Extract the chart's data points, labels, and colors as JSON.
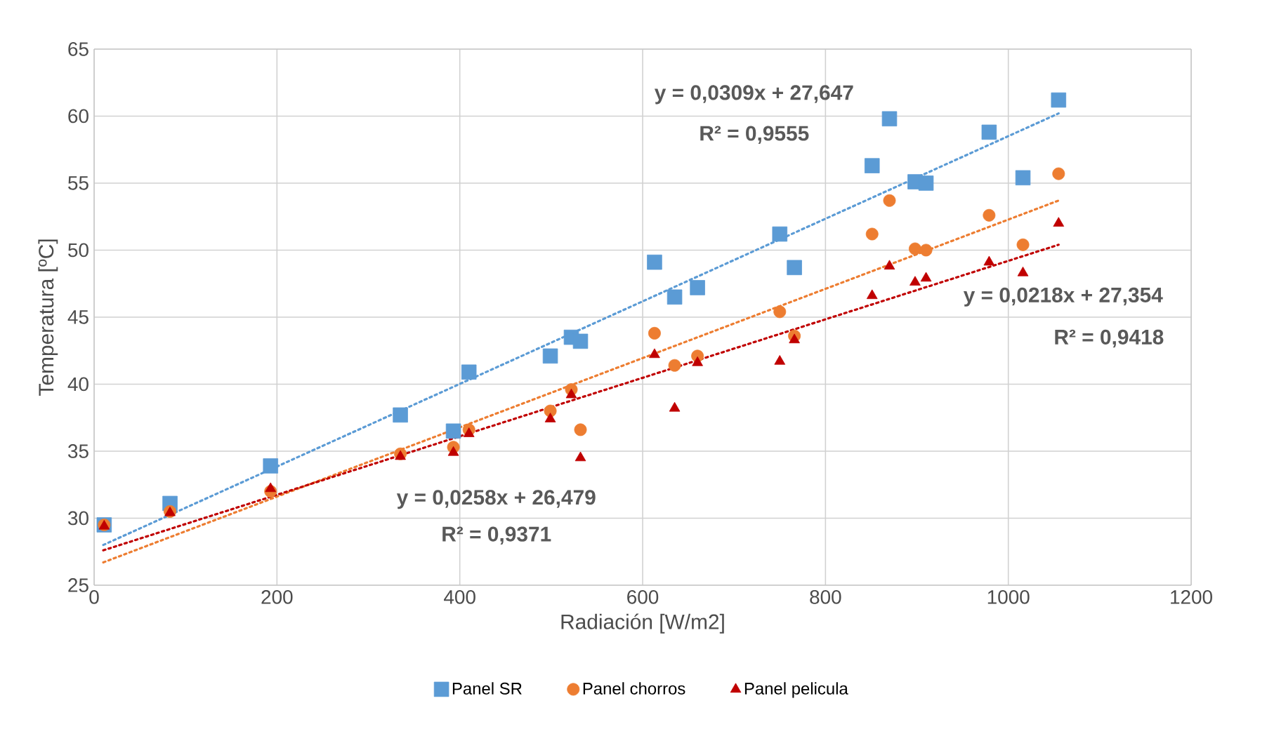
{
  "chart_data": {
    "type": "scatter",
    "xlabel": "Radiación [W/m2]",
    "ylabel": "Temperatura [ºC]",
    "xlim": [
      0,
      1200
    ],
    "ylim": [
      25,
      65
    ],
    "xticks": [
      0,
      200,
      400,
      600,
      800,
      1000,
      1200
    ],
    "yticks": [
      25,
      30,
      35,
      40,
      45,
      50,
      55,
      60,
      65
    ],
    "grid": true,
    "legend": "bottom",
    "series": [
      {
        "name": "Panel SR",
        "color": "#5b9bd5",
        "marker": "square",
        "x": [
          11,
          83,
          193,
          335,
          393,
          410,
          499,
          522,
          532,
          613,
          635,
          660,
          750,
          766,
          851,
          870,
          898,
          910,
          979,
          1016,
          1055
        ],
        "values": [
          29.5,
          31.1,
          33.9,
          37.7,
          36.5,
          40.9,
          42.1,
          43.5,
          43.2,
          49.1,
          46.5,
          47.2,
          51.2,
          48.7,
          56.3,
          59.8,
          55.1,
          55.0,
          58.8,
          55.4,
          61.2
        ]
      },
      {
        "name": "Panel chorros",
        "color": "#ed7d31",
        "marker": "circle",
        "x": [
          11,
          83,
          193,
          335,
          393,
          410,
          499,
          522,
          532,
          613,
          635,
          660,
          750,
          766,
          851,
          870,
          898,
          910,
          979,
          1016,
          1055
        ],
        "values": [
          29.5,
          30.5,
          32.0,
          34.8,
          35.3,
          36.6,
          38.0,
          39.6,
          36.6,
          43.8,
          41.4,
          42.1,
          45.4,
          43.6,
          51.2,
          53.7,
          50.1,
          50.0,
          52.6,
          50.4,
          55.7
        ]
      },
      {
        "name": "Panel pelicula",
        "color": "#c00000",
        "marker": "triangle",
        "x": [
          11,
          83,
          193,
          335,
          393,
          410,
          499,
          522,
          532,
          613,
          635,
          660,
          750,
          766,
          851,
          870,
          898,
          910,
          979,
          1016,
          1055
        ],
        "values": [
          29.4,
          30.4,
          32.2,
          34.6,
          34.9,
          36.3,
          37.4,
          39.2,
          34.5,
          42.2,
          38.2,
          41.6,
          41.7,
          43.3,
          46.6,
          48.8,
          47.6,
          47.9,
          49.1,
          48.3,
          52.0
        ]
      },
      {
        "type": "line",
        "color": "#5b9bd5",
        "marker": "none",
        "line_style": "dotted",
        "x": [
          10,
          1055
        ],
        "values": [
          28.0,
          60.2
        ]
      },
      {
        "type": "line",
        "color": "#ed7d31",
        "marker": "none",
        "line_style": "dotted",
        "x": [
          10,
          1055
        ],
        "values": [
          26.7,
          53.7
        ]
      },
      {
        "type": "line",
        "color": "#c00000",
        "marker": "none",
        "line_style": "dotted",
        "x": [
          10,
          1055
        ],
        "values": [
          27.6,
          50.4
        ]
      }
    ],
    "annotations": [
      "y = 0,0309x + 27,647",
      "R² = 0,9555",
      "y = 0,0258x + 26,479",
      "R² = 0,9371",
      "y = 0,0218x + 27,354",
      "R² = 0,9418"
    ]
  }
}
